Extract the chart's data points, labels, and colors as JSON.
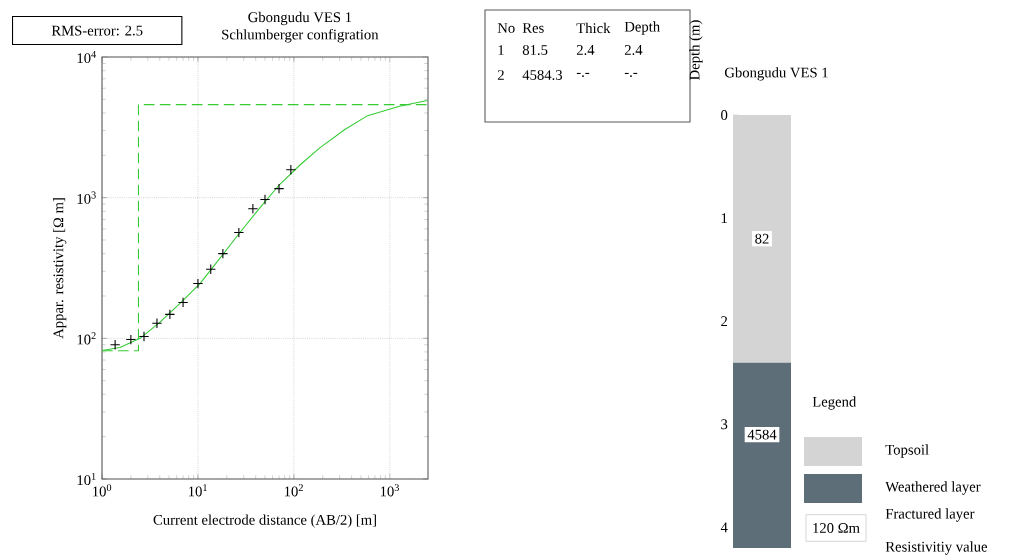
{
  "chart_data": [
    {
      "type": "line",
      "title": "Gbongudu VES 1",
      "subtitle": "Schlumberger configration",
      "xlabel": "Current electrode distance (AB/2) [m]",
      "ylabel": "Appar. resistivity [Ω m]",
      "log": "xy",
      "grid": true,
      "xlim": [
        1,
        2500
      ],
      "ylim": [
        10,
        10000
      ],
      "xticks": [
        {
          "value": 1,
          "label": "10$^{0}$"
        },
        {
          "value": 10,
          "label": "10$^{1}$"
        },
        {
          "value": 100,
          "label": "10$^{2}$"
        },
        {
          "value": 1000,
          "label": "10$^{3}$"
        }
      ],
      "yticks": [
        {
          "value": 10,
          "label": "10$^{1}$"
        },
        {
          "value": 100,
          "label": "10$^{2}$"
        },
        {
          "value": 1000,
          "label": "10$^{3}$"
        },
        {
          "value": 10000,
          "label": "10$^{4}$"
        }
      ],
      "series": [
        {
          "type": "scatter",
          "color": "#000000",
          "marker": "cross",
          "x": [
            1.37,
            2.0,
            2.74,
            3.74,
            5.1,
            7.0,
            10,
            13.6,
            18.2,
            26.7,
            37.4,
            50,
            70,
            93
          ],
          "values": [
            90,
            98,
            103,
            128,
            148,
            180,
            245,
            310,
            400,
            565,
            835,
            970,
            1160,
            1580
          ]
        },
        {
          "type": "line",
          "color": "#33cc33",
          "line_style": "solid",
          "x": [
            1,
            1.54,
            2.49,
            4.0,
            6.5,
            10.5,
            16.9,
            27.4,
            44.4,
            71,
            115,
            186,
            340,
            575,
            1260,
            2450
          ],
          "values": [
            82,
            86,
            100,
            130,
            177,
            245,
            370,
            565,
            850,
            1240,
            1700,
            2260,
            3050,
            3800,
            4470,
            4900
          ]
        },
        {
          "type": "line",
          "color": "#33cc33",
          "line_style": "dashed",
          "x": [
            1,
            2.4,
            2.4,
            2500
          ],
          "values": [
            81.5,
            81.5,
            4584.3,
            4584.3
          ]
        }
      ],
      "annotations": [
        "RMS-error: 2.5",
        "No",
        "Res",
        "Thick",
        "Depth",
        "1",
        "81.5",
        "2.4",
        "2.4",
        "2",
        "4584.3",
        "-.-",
        "-.-"
      ]
    },
    {
      "type": "bar",
      "stacked": true,
      "title": "Gbongudu VES 1",
      "ylabel": "Depth (m)",
      "legend_title": "Legend",
      "legend": "right",
      "categories": [
        null
      ],
      "ylim": [
        4.2,
        0
      ],
      "yticks": [
        0,
        1,
        2,
        3,
        4
      ],
      "series": [
        {
          "name": "Topsoil",
          "color": "#d4d4d4",
          "values": [
            2.4
          ]
        },
        {
          "name": "Weathered layer",
          "color": "#5e6e78",
          "values": [
            1.8
          ]
        }
      ],
      "annotations": [
        {
          "text": "82",
          "y": 1.2
        },
        {
          "text": "4584",
          "y": 3.1
        },
        "Fractured layer",
        "120 Ωm",
        "Resistivitiy value"
      ]
    }
  ]
}
